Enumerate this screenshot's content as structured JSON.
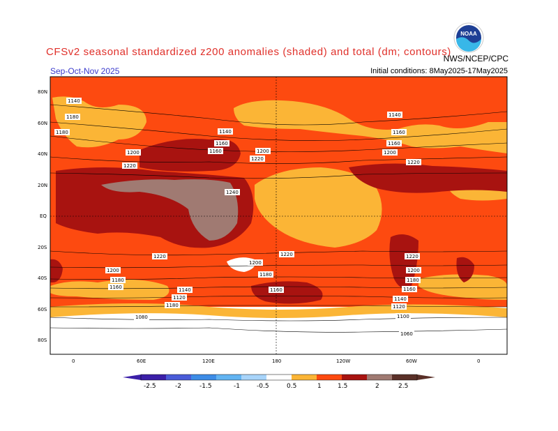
{
  "header": {
    "title": "CFSv2 seasonal standardized z200 anomalies (shaded) and total (dm; contours)",
    "period": "Sep-Oct-Nov 2025",
    "initial_conditions": "Initial conditions: 8May2025-17May2025",
    "agency": "NWS/NCEP/CPC",
    "logo_text": "NOAA"
  },
  "axes": {
    "lat_labels": [
      "80N",
      "60N",
      "40N",
      "20N",
      "EQ",
      "20S",
      "40S",
      "60S",
      "80S"
    ],
    "lon_labels": [
      "0",
      "60E",
      "120E",
      "180",
      "120W",
      "60W",
      "0"
    ]
  },
  "contour_labels": [
    "1140",
    "1180",
    "1220",
    "1080",
    "1060",
    "1100",
    "1160",
    "1200",
    "1120",
    "1240"
  ],
  "colorbar": {
    "labels": [
      "-2.5",
      "-2",
      "-1.5",
      "-1",
      "-0.5",
      "0.5",
      "1",
      "1.5",
      "2",
      "2.5"
    ],
    "colors": [
      "#3b1fa8",
      "#4a5cd8",
      "#3d8ce6",
      "#62b4f2",
      "#a8d4fa",
      "#ffffff",
      "#fbb536",
      "#fd4a10",
      "#a81310",
      "#a07a72",
      "#5a3028"
    ]
  },
  "colors": {
    "cat_white": "#ffffff",
    "cat_light": "#fbb536",
    "cat_med": "#fd4a10",
    "cat_dark": "#a81310",
    "cat_grey": "#a07a72"
  }
}
